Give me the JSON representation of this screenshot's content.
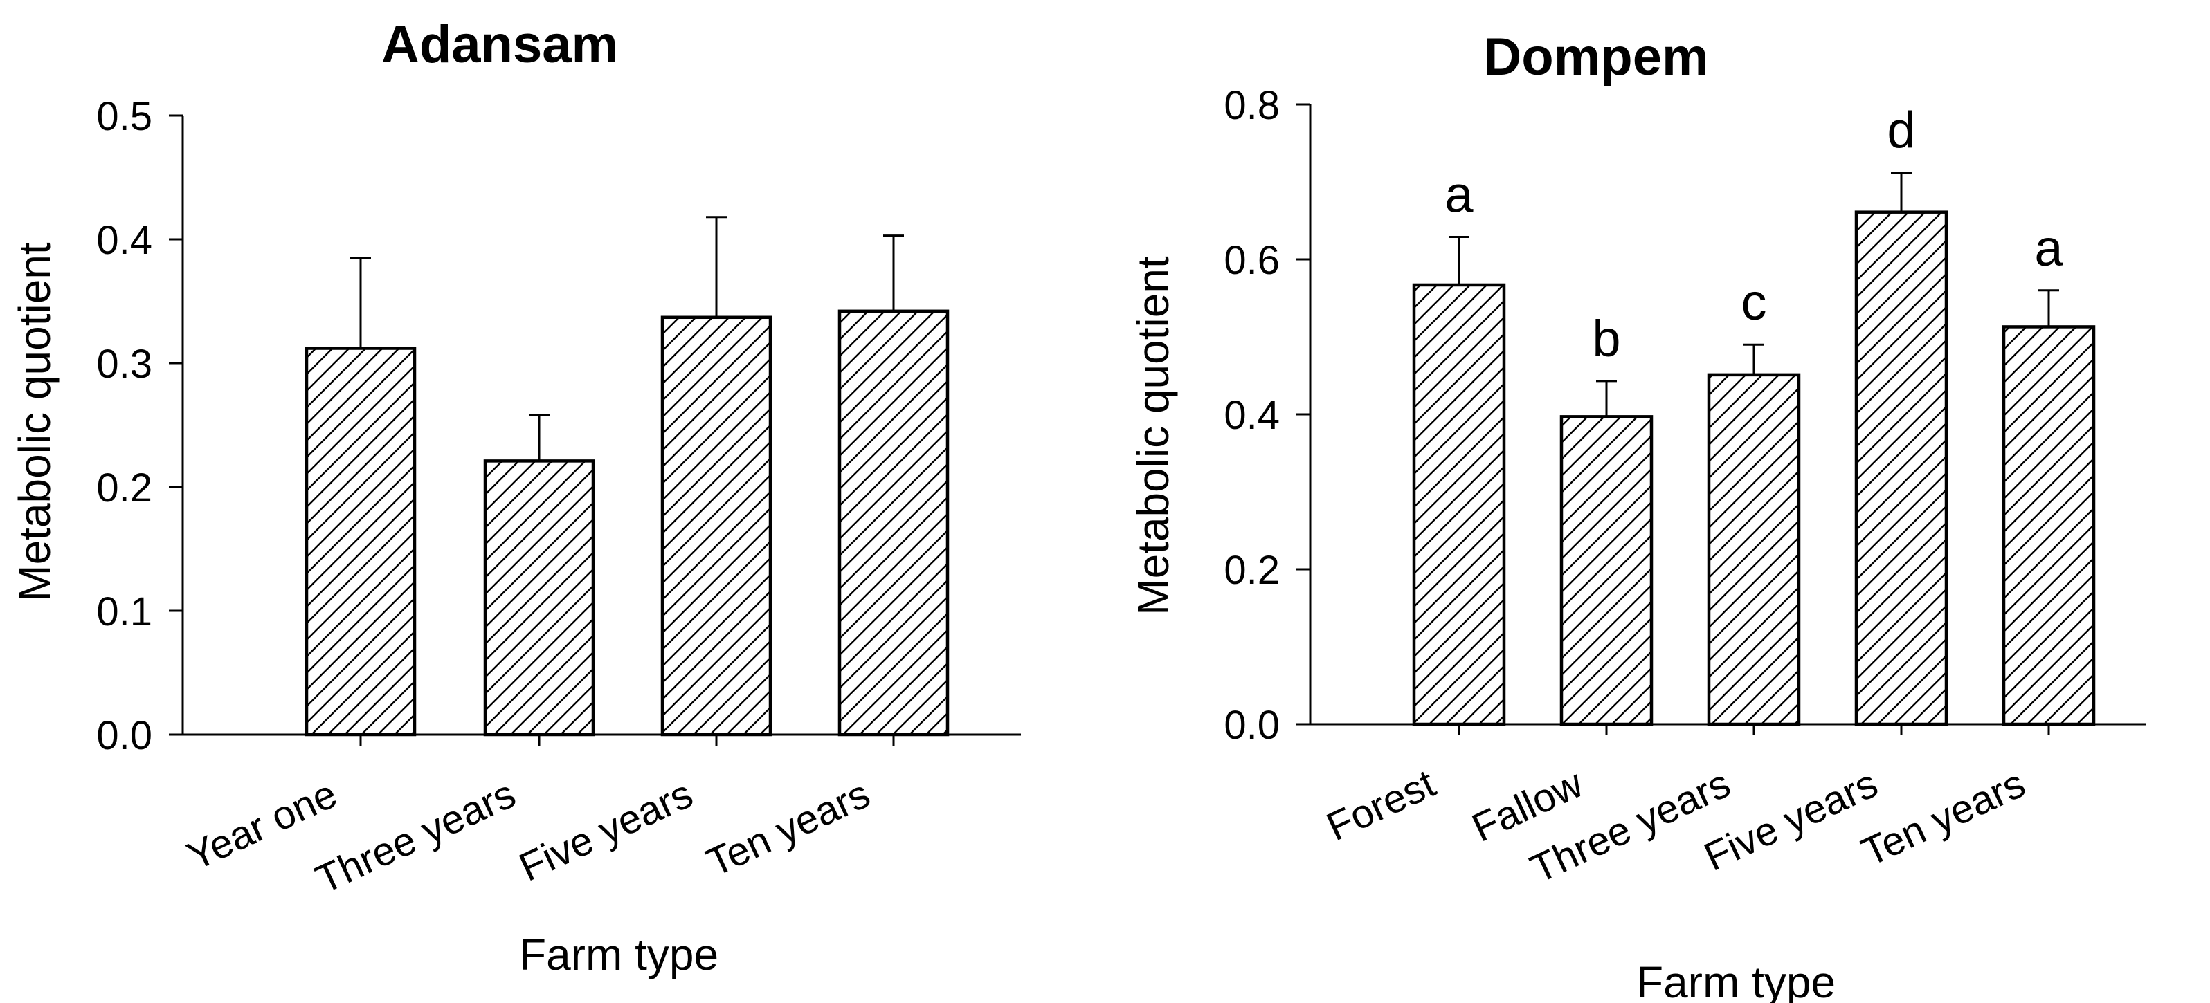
{
  "page": {
    "background": "#ffffff",
    "ink": "#000000"
  },
  "chart_data": [
    {
      "type": "bar",
      "panel": "left",
      "title": "Adansam",
      "xlabel": "Farm type",
      "ylabel": "Metabolic quotient",
      "categories": [
        "Year one",
        "Three years",
        "Five years",
        "Ten years"
      ],
      "values": [
        0.312,
        0.221,
        0.337,
        0.342
      ],
      "error_plus": [
        0.073,
        0.037,
        0.081,
        0.061
      ],
      "sig_letters": [
        "",
        "",
        "",
        ""
      ],
      "ylim": [
        0.0,
        0.5
      ],
      "yticks": [
        0.0,
        0.1,
        0.2,
        0.3,
        0.4,
        0.5
      ],
      "ytick_labels": [
        "0.0",
        "0.1",
        "0.2",
        "0.3",
        "0.4",
        "0.5"
      ],
      "grid": false,
      "legend": null,
      "bar_style": "white with black diagonal hatch, black outline, upper error bars with caps"
    },
    {
      "type": "bar",
      "panel": "right",
      "title": "Dompem",
      "xlabel": "Farm type",
      "ylabel": "Metabolic quotient",
      "categories": [
        "Forest",
        "Fallow",
        "Three years",
        "Five years",
        "Ten years"
      ],
      "values": [
        0.567,
        0.397,
        0.451,
        0.661,
        0.513
      ],
      "error_plus": [
        0.062,
        0.046,
        0.039,
        0.051,
        0.047
      ],
      "sig_letters": [
        "a",
        "b",
        "c",
        "d",
        "a"
      ],
      "ylim": [
        0.0,
        0.8
      ],
      "yticks": [
        0.0,
        0.2,
        0.4,
        0.6,
        0.8
      ],
      "ytick_labels": [
        "0.0",
        "0.2",
        "0.4",
        "0.6",
        "0.8"
      ],
      "grid": false,
      "legend": null,
      "bar_style": "white with black diagonal hatch, black outline, upper error bars with caps, significance letters above bars"
    }
  ]
}
